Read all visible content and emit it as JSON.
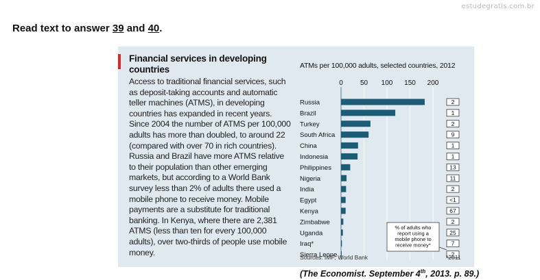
{
  "watermark": "estudegratis.com.br",
  "instruction": {
    "prefix": "Read text to answer ",
    "q1": "39",
    "mid": " and ",
    "q2": "40",
    "suffix": "."
  },
  "article": {
    "title": "Financial services in developing countries",
    "body": "Access to traditional financial services, such as deposit-taking accounts and automatic teller machines (ATMS), in developing countries has expanded in recent years. Since 2004 the number of ATMS per 100,000 adults has more than doubled, to around 22 (compared with over 70 in rich countries). Russia and Brazil have more ATMS relative to their population than other emerging markets, but according to a World Bank survey less than 2% of adults there used a mobile phone to receive money. Mobile payments are a substitute for traditional banking. In Kenya, where there are 2,381 ATMS (less than ten for every 100,000 adults), over two-thirds of people use mobile money."
  },
  "colors": {
    "bar": "#1c5c74",
    "panel": "#dfe9ef",
    "accent": "#d62b2b"
  },
  "chart_data": {
    "type": "bar",
    "orientation": "horizontal",
    "title": "ATMs per 100,000 adults, selected countries, 2012",
    "xlim": [
      0,
      200
    ],
    "ticks": [
      "0",
      "50",
      "100",
      "150",
      "200"
    ],
    "grid": true,
    "categories": [
      "Russia",
      "Brazil",
      "Turkey",
      "South Africa",
      "China",
      "Indonesia",
      "Philippines",
      "Nigeria",
      "India",
      "Egypt",
      "Kenya",
      "Zimbabwe",
      "Uganda",
      "Iraq*",
      "Sierra Leone"
    ],
    "values": [
      182,
      118,
      64,
      60,
      37,
      36,
      20,
      12,
      11,
      10,
      10,
      5,
      4,
      2,
      1
    ],
    "side_column": {
      "label": "% of adults who report using a mobile phone to receive money*",
      "values": [
        "2",
        "1",
        "2",
        "9",
        "1",
        "1",
        "13",
        "11",
        "2",
        "<1",
        "67",
        "2",
        "25",
        "7",
        "2"
      ]
    },
    "sources": "Sources: IMF; World Bank",
    "footnote": "*2011"
  },
  "citation": {
    "pre": "(The Economist. September 4",
    "sup": "th",
    "post": ", 2013. p. 89.)"
  }
}
